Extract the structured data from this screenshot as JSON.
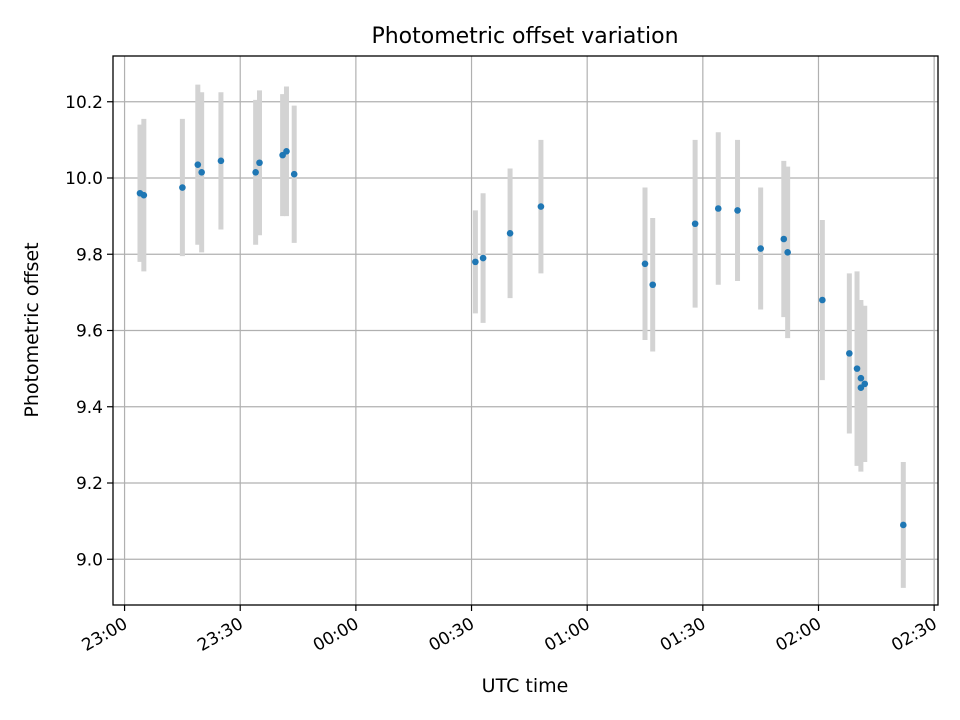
{
  "chart_data": {
    "type": "scatter",
    "title": "Photometric offset variation",
    "xlabel": "UTC time",
    "ylabel": "Photometric offset",
    "x_ticks": [
      "23:00",
      "23:30",
      "00:00",
      "00:30",
      "01:00",
      "01:30",
      "02:00",
      "02:30"
    ],
    "y_ticks": [
      "9.0",
      "9.2",
      "9.4",
      "9.6",
      "9.8",
      "10.0",
      "10.2"
    ],
    "y_tick_values": [
      9.0,
      9.2,
      9.4,
      9.6,
      9.8,
      10.0,
      10.2
    ],
    "xlim": [
      "22:57",
      "02:31"
    ],
    "ylim": [
      8.88,
      10.32
    ],
    "grid": true,
    "x_tick_rotation_deg": 30,
    "colors": {
      "point": "#1f77b4",
      "errorbar": "#d3d3d3",
      "grid": "#b0b0b0"
    },
    "series": [
      {
        "points": [
          {
            "t": "23:04",
            "y": 9.96,
            "err": 0.18
          },
          {
            "t": "23:05",
            "y": 9.955,
            "err": 0.2
          },
          {
            "t": "23:15",
            "y": 9.975,
            "err": 0.18
          },
          {
            "t": "23:19",
            "y": 10.035,
            "err": 0.21
          },
          {
            "t": "23:20",
            "y": 10.015,
            "err": 0.21
          },
          {
            "t": "23:25",
            "y": 10.045,
            "err": 0.18
          },
          {
            "t": "23:34",
            "y": 10.015,
            "err": 0.19
          },
          {
            "t": "23:35",
            "y": 10.04,
            "err": 0.19
          },
          {
            "t": "23:41",
            "y": 10.06,
            "err": 0.16
          },
          {
            "t": "23:42",
            "y": 10.07,
            "err": 0.17
          },
          {
            "t": "23:44",
            "y": 10.01,
            "err": 0.18
          },
          {
            "t": "00:31",
            "y": 9.78,
            "err": 0.135
          },
          {
            "t": "00:33",
            "y": 9.79,
            "err": 0.17
          },
          {
            "t": "00:40",
            "y": 9.855,
            "err": 0.17
          },
          {
            "t": "00:48",
            "y": 9.925,
            "err": 0.175
          },
          {
            "t": "01:15",
            "y": 9.775,
            "err": 0.2
          },
          {
            "t": "01:17",
            "y": 9.72,
            "err": 0.175
          },
          {
            "t": "01:28",
            "y": 9.88,
            "err": 0.22
          },
          {
            "t": "01:34",
            "y": 9.92,
            "err": 0.2
          },
          {
            "t": "01:39",
            "y": 9.915,
            "err": 0.185
          },
          {
            "t": "01:45",
            "y": 9.815,
            "err": 0.16
          },
          {
            "t": "01:51",
            "y": 9.84,
            "err": 0.205
          },
          {
            "t": "01:52",
            "y": 9.805,
            "err": 0.225
          },
          {
            "t": "02:01",
            "y": 9.68,
            "err": 0.21
          },
          {
            "t": "02:08",
            "y": 9.54,
            "err": 0.21
          },
          {
            "t": "02:10",
            "y": 9.5,
            "err": 0.255
          },
          {
            "t": "02:11",
            "y": 9.45,
            "err": 0.22
          },
          {
            "t": "02:11",
            "y": 9.475,
            "err": 0.205
          },
          {
            "t": "02:12",
            "y": 9.46,
            "err": 0.205
          },
          {
            "t": "02:22",
            "y": 9.09,
            "err": 0.165
          }
        ]
      }
    ]
  }
}
